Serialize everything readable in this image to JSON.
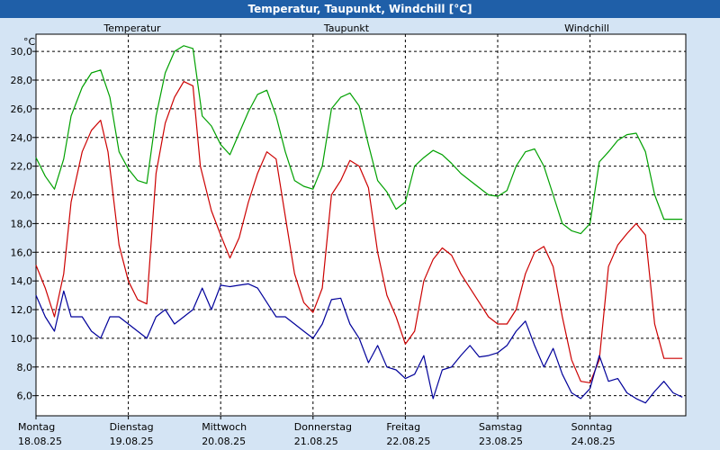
{
  "window": {
    "title": "Temperatur, Taupunkt, Windchill [°C]"
  },
  "chart_data": {
    "type": "line",
    "title": "Temperatur, Taupunkt, Windchill [°C]",
    "ylabel": "°C",
    "ylim": [
      4.6,
      31.2
    ],
    "yticks": [
      6,
      8,
      10,
      12,
      14,
      16,
      18,
      20,
      22,
      24,
      26,
      28,
      30
    ],
    "ytick_labels": [
      "6,0",
      "8,0",
      "10,0",
      "12,0",
      "14,0",
      "16,0",
      "18,0",
      "20,0",
      "22,0",
      "24,0",
      "26,0",
      "28,0",
      "30,0"
    ],
    "xlim": [
      0,
      7
    ],
    "xticks": [
      {
        "pos": 0,
        "day": "Montag",
        "date": "18.08.25"
      },
      {
        "pos": 1,
        "day": "Dienstag",
        "date": "19.08.25"
      },
      {
        "pos": 2,
        "day": "Mittwoch",
        "date": "20.08.25"
      },
      {
        "pos": 3,
        "day": "Donnerstag",
        "date": "21.08.25"
      },
      {
        "pos": 4,
        "day": "Freitag",
        "date": "22.08.25"
      },
      {
        "pos": 5,
        "day": "Samstag",
        "date": "23.08.25"
      },
      {
        "pos": 6,
        "day": "Sonntag",
        "date": "24.08.25"
      }
    ],
    "grid": true,
    "legend_position": "top",
    "series": [
      {
        "name": "Temperatur",
        "color": "#cc0000",
        "x": [
          0,
          0.1,
          0.2,
          0.3,
          0.38,
          0.5,
          0.6,
          0.7,
          0.78,
          0.9,
          1.0,
          1.1,
          1.2,
          1.3,
          1.4,
          1.5,
          1.6,
          1.7,
          1.78,
          1.9,
          2.0,
          2.1,
          2.2,
          2.3,
          2.4,
          2.5,
          2.6,
          2.7,
          2.8,
          2.9,
          3.0,
          3.1,
          3.2,
          3.3,
          3.4,
          3.5,
          3.6,
          3.7,
          3.8,
          3.9,
          4.0,
          4.1,
          4.2,
          4.3,
          4.4,
          4.5,
          4.6,
          4.7,
          4.8,
          4.9,
          5.0,
          5.1,
          5.2,
          5.3,
          5.4,
          5.5,
          5.6,
          5.7,
          5.8,
          5.9,
          6.0,
          6.1,
          6.2,
          6.3,
          6.4,
          6.5,
          6.6,
          6.7,
          6.8,
          6.9,
          7.0
        ],
        "values": [
          15.1,
          13.5,
          11.5,
          14.5,
          19.5,
          23.0,
          24.5,
          25.2,
          23.0,
          16.5,
          14.0,
          12.7,
          12.4,
          21.5,
          25.0,
          26.8,
          27.9,
          27.6,
          22.0,
          18.9,
          17.2,
          15.6,
          17.0,
          19.5,
          21.5,
          23.0,
          22.5,
          18.5,
          14.5,
          12.5,
          11.8,
          13.5,
          20.0,
          21.0,
          22.4,
          22.0,
          20.5,
          16.0,
          13.0,
          11.5,
          9.6,
          10.5,
          14.0,
          15.5,
          16.3,
          15.8,
          14.5,
          13.5,
          12.5,
          11.5,
          11.0,
          11.0,
          12.0,
          14.5,
          16.0,
          16.4,
          15.0,
          11.5,
          8.5,
          7.0,
          6.9,
          8.5,
          15.0,
          16.5,
          17.3,
          18.0,
          17.2,
          11.0,
          8.6,
          8.6,
          8.6
        ]
      },
      {
        "name": "Taupunkt",
        "color": "#00009a",
        "x": [
          0,
          0.1,
          0.2,
          0.3,
          0.38,
          0.5,
          0.6,
          0.7,
          0.8,
          0.9,
          1.0,
          1.1,
          1.2,
          1.3,
          1.4,
          1.5,
          1.6,
          1.7,
          1.8,
          1.9,
          2.0,
          2.1,
          2.2,
          2.3,
          2.4,
          2.5,
          2.6,
          2.7,
          2.8,
          2.9,
          3.0,
          3.1,
          3.2,
          3.3,
          3.4,
          3.5,
          3.6,
          3.7,
          3.8,
          3.9,
          4.0,
          4.1,
          4.2,
          4.3,
          4.4,
          4.5,
          4.6,
          4.7,
          4.8,
          4.9,
          5.0,
          5.1,
          5.2,
          5.3,
          5.4,
          5.5,
          5.6,
          5.7,
          5.8,
          5.9,
          6.0,
          6.1,
          6.2,
          6.3,
          6.4,
          6.5,
          6.6,
          6.7,
          6.8,
          6.9,
          7.0
        ],
        "values": [
          13.0,
          11.5,
          10.5,
          13.3,
          11.5,
          11.5,
          10.5,
          10.0,
          11.5,
          11.5,
          11.0,
          10.5,
          10.0,
          11.5,
          12.0,
          11.0,
          11.5,
          12.0,
          13.5,
          12.0,
          13.7,
          13.6,
          13.7,
          13.8,
          13.5,
          12.5,
          11.5,
          11.5,
          11.0,
          10.5,
          10.0,
          11.0,
          12.7,
          12.8,
          11.0,
          10.0,
          8.3,
          9.5,
          8.0,
          7.8,
          7.2,
          7.5,
          8.8,
          5.8,
          7.8,
          8.0,
          8.8,
          9.5,
          8.7,
          8.8,
          9.0,
          9.5,
          10.5,
          11.2,
          9.5,
          8.0,
          9.3,
          7.5,
          6.2,
          5.8,
          6.5,
          8.8,
          7.0,
          7.2,
          6.2,
          5.8,
          5.5,
          6.3,
          7.0,
          6.2,
          5.9
        ]
      },
      {
        "name": "Windchill",
        "color": "#00a000",
        "x": [
          0,
          0.1,
          0.2,
          0.3,
          0.38,
          0.5,
          0.6,
          0.7,
          0.8,
          0.9,
          1.0,
          1.1,
          1.2,
          1.3,
          1.4,
          1.5,
          1.6,
          1.7,
          1.8,
          1.9,
          2.0,
          2.1,
          2.2,
          2.3,
          2.4,
          2.5,
          2.6,
          2.7,
          2.8,
          2.9,
          3.0,
          3.1,
          3.2,
          3.3,
          3.4,
          3.5,
          3.6,
          3.7,
          3.8,
          3.9,
          4.0,
          4.1,
          4.2,
          4.3,
          4.4,
          4.5,
          4.6,
          4.7,
          4.8,
          4.9,
          5.0,
          5.1,
          5.2,
          5.3,
          5.4,
          5.5,
          5.6,
          5.7,
          5.8,
          5.9,
          6.0,
          6.1,
          6.2,
          6.3,
          6.4,
          6.5,
          6.6,
          6.7,
          6.8,
          6.9,
          7.0
        ],
        "values": [
          22.6,
          21.3,
          20.4,
          22.5,
          25.5,
          27.5,
          28.5,
          28.7,
          26.8,
          23.0,
          21.8,
          21.0,
          20.8,
          25.5,
          28.5,
          30.0,
          30.4,
          30.2,
          25.5,
          24.8,
          23.5,
          22.8,
          24.3,
          25.8,
          27.0,
          27.3,
          25.5,
          23.0,
          21.0,
          20.6,
          20.4,
          22.0,
          26.0,
          26.8,
          27.1,
          26.2,
          23.5,
          21.0,
          20.2,
          19.0,
          19.5,
          22.0,
          22.6,
          23.1,
          22.8,
          22.2,
          21.5,
          21.0,
          20.5,
          20.0,
          19.9,
          20.3,
          22.0,
          23.0,
          23.2,
          22.0,
          20.0,
          18.0,
          17.5,
          17.3,
          18.0,
          22.3,
          23.0,
          23.8,
          24.2,
          24.3,
          23.0,
          20.0,
          18.3,
          18.3,
          18.3
        ]
      }
    ]
  }
}
